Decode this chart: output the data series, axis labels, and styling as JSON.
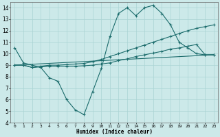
{
  "xlabel": "Humidex (Indice chaleur)",
  "ylabel": "",
  "background_color": "#cce9e9",
  "grid_color": "#aad4d4",
  "line_color": "#1a6b6b",
  "xlim": [
    -0.5,
    23.5
  ],
  "ylim": [
    4,
    14.5
  ],
  "yticks": [
    4,
    5,
    6,
    7,
    8,
    9,
    10,
    11,
    12,
    13,
    14
  ],
  "xticks": [
    0,
    1,
    2,
    3,
    4,
    5,
    6,
    7,
    8,
    9,
    10,
    11,
    12,
    13,
    14,
    15,
    16,
    17,
    18,
    19,
    20,
    21,
    22,
    23
  ],
  "series": [
    {
      "x": [
        0,
        1,
        2,
        3,
        4,
        5,
        6,
        7,
        8,
        9,
        10,
        11,
        12,
        13,
        14,
        15,
        16,
        17,
        18,
        19,
        20,
        21,
        22,
        23
      ],
      "y": [
        10.5,
        9.2,
        9.0,
        8.8,
        7.9,
        7.6,
        6.0,
        5.1,
        4.7,
        6.7,
        8.7,
        11.5,
        13.5,
        14.0,
        13.3,
        14.0,
        14.2,
        13.5,
        12.5,
        11.0,
        10.5,
        10.0,
        9.9,
        9.9
      ]
    },
    {
      "x": [
        0,
        1,
        2,
        3,
        4,
        5,
        6,
        7,
        8,
        9,
        10,
        11,
        12,
        13,
        14,
        15,
        16,
        17,
        18,
        19,
        20,
        21,
        22,
        23
      ],
      "y": [
        9.0,
        9.0,
        8.8,
        8.9,
        9.0,
        9.0,
        9.05,
        9.1,
        9.15,
        9.3,
        9.5,
        9.75,
        10.0,
        10.25,
        10.5,
        10.75,
        11.0,
        11.25,
        11.5,
        11.75,
        12.0,
        12.2,
        12.35,
        12.5
      ]
    },
    {
      "x": [
        0,
        1,
        2,
        3,
        4,
        5,
        6,
        7,
        8,
        9,
        10,
        11,
        12,
        13,
        14,
        15,
        16,
        17,
        18,
        19,
        20,
        21,
        22,
        23
      ],
      "y": [
        9.0,
        9.0,
        8.8,
        8.85,
        8.9,
        8.9,
        8.9,
        8.9,
        8.95,
        9.0,
        9.1,
        9.2,
        9.4,
        9.55,
        9.75,
        9.9,
        10.05,
        10.2,
        10.4,
        10.5,
        10.65,
        10.8,
        9.9,
        9.9
      ]
    },
    {
      "x": [
        0,
        23
      ],
      "y": [
        9.0,
        9.9
      ]
    }
  ]
}
